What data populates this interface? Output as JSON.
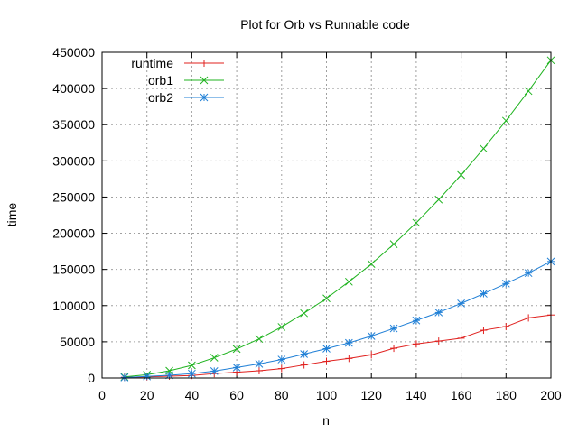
{
  "chart_data": {
    "type": "line",
    "title": "Plot for Orb vs Runnable code",
    "xlabel": "n",
    "ylabel": "time",
    "xlim": [
      0,
      200
    ],
    "ylim": [
      0,
      450000
    ],
    "xticks": [
      "0",
      "20",
      "40",
      "60",
      "80",
      "100",
      "120",
      "140",
      "160",
      "180",
      "200"
    ],
    "yticks": [
      "0",
      "50000",
      "100000",
      "150000",
      "200000",
      "250000",
      "300000",
      "350000",
      "400000",
      "450000"
    ],
    "grid": true,
    "legend_position": "top-left",
    "x": [
      10,
      20,
      30,
      40,
      50,
      60,
      70,
      80,
      90,
      100,
      110,
      120,
      130,
      140,
      150,
      160,
      170,
      180,
      190,
      200
    ],
    "series": [
      {
        "name": "runtime",
        "color": "#e0201e",
        "marker": "plus",
        "values": [
          1000,
          1500,
          2500,
          3500,
          6000,
          8000,
          10000,
          13000,
          18000,
          23000,
          27000,
          32000,
          41000,
          47000,
          51000,
          55000,
          66000,
          71000,
          83000,
          87000
        ]
      },
      {
        "name": "orb1",
        "color": "#1fb31f",
        "marker": "x",
        "values": [
          1500,
          4500,
          10000,
          17500,
          28000,
          40000,
          54000,
          70500,
          89500,
          110000,
          133000,
          157500,
          185000,
          214500,
          246500,
          280500,
          317000,
          355500,
          396500,
          439000
        ]
      },
      {
        "name": "orb2",
        "color": "#1f7fd6",
        "marker": "star",
        "values": [
          700,
          2200,
          3800,
          6000,
          9500,
          14500,
          19500,
          25500,
          33000,
          40500,
          48500,
          58000,
          68500,
          79500,
          90500,
          103000,
          116500,
          130500,
          145000,
          161000
        ]
      }
    ]
  }
}
